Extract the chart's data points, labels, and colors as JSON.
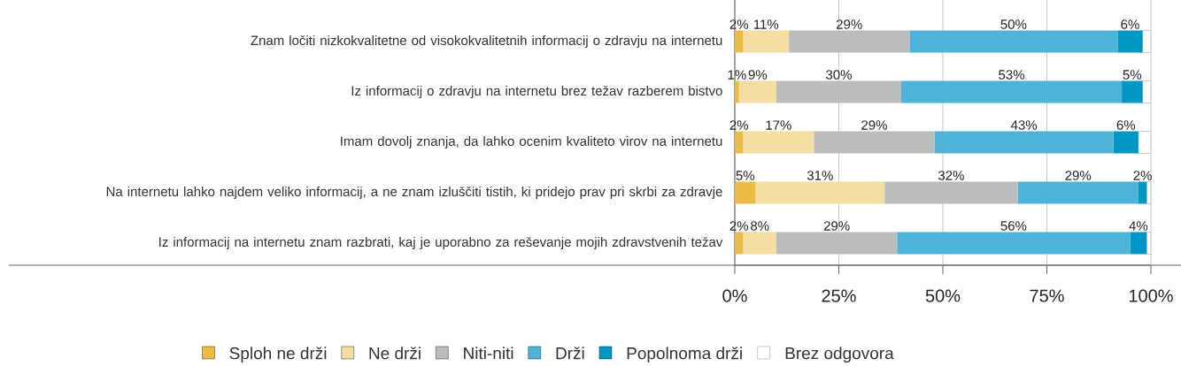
{
  "chart_data": {
    "type": "bar",
    "orientation": "horizontal",
    "stacked": true,
    "categories": [
      "Znam ločiti nizkokvalitetne od visokokvalitetnih informacij o zdravju na internetu",
      "Iz informacij o zdravju na internetu brez težav razberem bistvo",
      "Imam dovolj znanja, da lahko ocenim kvaliteto virov na internetu",
      "Na internetu lahko najdem veliko informacij, a ne znam izluščiti tistih, ki pridejo prav pri skrbi za zdravje",
      "Iz informacij na internetu znam razbrati, kaj je uporabno za reševanje mojih zdravstvenih težav"
    ],
    "series": [
      {
        "name": "Sploh ne drži",
        "color": "#ecbb45",
        "values": [
          2,
          1,
          2,
          5,
          2
        ],
        "value_labels": [
          "2%",
          "1%",
          "2%",
          "5%",
          "2%"
        ]
      },
      {
        "name": "Ne drži",
        "color": "#f4dea2",
        "values": [
          11,
          9,
          17,
          31,
          8
        ],
        "value_labels": [
          "11%",
          "9%",
          "17%",
          "31%",
          "8%"
        ]
      },
      {
        "name": "Niti-niti",
        "color": "#bbbcbe",
        "values": [
          29,
          30,
          29,
          32,
          29
        ],
        "value_labels": [
          "29%",
          "30%",
          "29%",
          "32%",
          "29%"
        ]
      },
      {
        "name": "Drži",
        "color": "#4db4d7",
        "values": [
          50,
          53,
          43,
          29,
          56
        ],
        "value_labels": [
          "50%",
          "53%",
          "43%",
          "29%",
          "56%"
        ]
      },
      {
        "name": "Popolnoma drži",
        "color": "#0097c4",
        "values": [
          6,
          5,
          6,
          2,
          4
        ],
        "value_labels": [
          "6%",
          "5%",
          "6%",
          "2%",
          "4%"
        ]
      },
      {
        "name": "Brez odgovora",
        "color": "#ffffff",
        "values": [
          2,
          2,
          3,
          1,
          1
        ]
      }
    ],
    "xlim": [
      0,
      100
    ],
    "xticks": [
      {
        "value": 0,
        "label": "0%"
      },
      {
        "value": 25,
        "label": "25%"
      },
      {
        "value": 50,
        "label": "50%"
      },
      {
        "value": 75,
        "label": "75%"
      },
      {
        "value": 100,
        "label": "100%"
      }
    ],
    "grid": "x",
    "legend": "bottom"
  }
}
